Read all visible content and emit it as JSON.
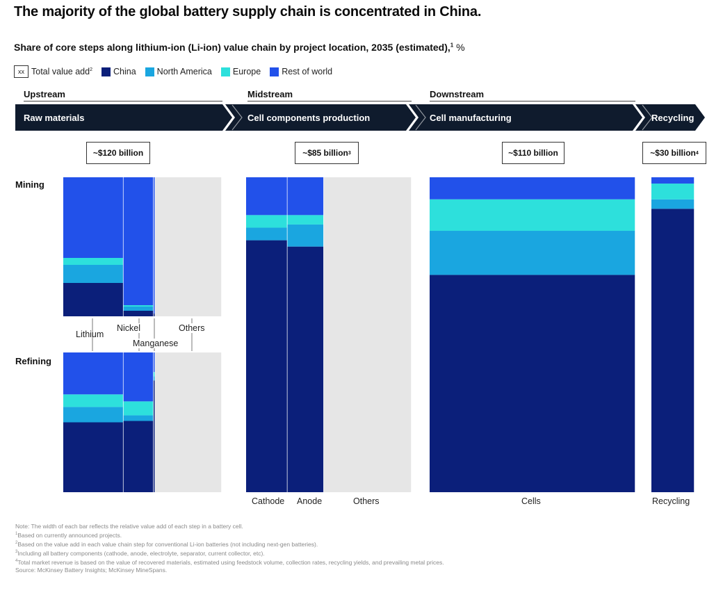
{
  "title": "The majority of the global battery supply chain is concentrated in China.",
  "subtitle": "Share of core steps along lithium-ion (Li-ion) value chain by project location, 2035 (estimated),",
  "subtitle_sup": "1",
  "subtitle_unit": "%",
  "legend": {
    "total_box": "xx",
    "total_label": "Total value add",
    "total_sup": "2",
    "items": [
      {
        "name": "China",
        "color": "#0b1f7a"
      },
      {
        "name": "North America",
        "color": "#1aa6e0"
      },
      {
        "name": "Europe",
        "color": "#2de0dc"
      },
      {
        "name": "Rest of world",
        "color": "#2251ea"
      }
    ]
  },
  "stages": {
    "upstream": "Upstream",
    "midstream": "Midstream",
    "downstream": "Downstream"
  },
  "band": {
    "raw": "Raw materials",
    "cellcomp": "Cell components production",
    "cellmfg": "Cell manufacturing",
    "recycling": "Recycling"
  },
  "totals": {
    "raw": {
      "text": "~$120 billion",
      "sup": ""
    },
    "cellcomp": {
      "text": "~$85 billion",
      "sup": "3"
    },
    "cellmfg": {
      "text": "~$110 billion",
      "sup": ""
    },
    "recycling": {
      "text": "~$30 billion",
      "sup": "4"
    }
  },
  "rows": {
    "mining": "Mining",
    "refining": "Refining"
  },
  "categories": {
    "lithium": "Lithium",
    "nickel": "Nickel",
    "manganese": "Manganese",
    "others": "Others",
    "cathode": "Cathode",
    "anode": "Anode",
    "others2": "Others",
    "cells": "Cells",
    "recycling": "Recycling"
  },
  "chart_data": {
    "type": "bar",
    "subtype": "marimekko (variable-width stacked 100% bars)",
    "unit": "%",
    "series_order": [
      "China",
      "North America",
      "Europe",
      "Rest of world"
    ],
    "colors": {
      "China": "#0b1f7a",
      "North America": "#1aa6e0",
      "Europe": "#2de0dc",
      "Rest of world": "#2251ea",
      "Other": "#e6e6e6"
    },
    "panels": [
      {
        "id": "mining",
        "name": "Mining",
        "total_value_add": "~$120 billion",
        "bars": [
          {
            "id": "lithium",
            "label": "Lithium",
            "width_share": 38,
            "values": {
              "China": 24,
              "North America": 13,
              "Europe": 5,
              "Rest of world": 58
            }
          },
          {
            "id": "nickel",
            "label": "Nickel",
            "width_share": 19,
            "values": {
              "China": 4,
              "North America": 3,
              "Europe": 1,
              "Rest of world": 92
            }
          },
          {
            "id": "manganese",
            "label": "Manganese",
            "width_share": 1,
            "values": {
              "China": 2,
              "North America": 0,
              "Europe": 0,
              "Rest of world": 98
            }
          },
          {
            "id": "others",
            "label": "Others",
            "width_share": 42,
            "values": {
              "Other": 100
            }
          }
        ]
      },
      {
        "id": "refining",
        "name": "Refining",
        "total_value_add": "~$120 billion",
        "bars": [
          {
            "id": "lithium",
            "label": "Lithium",
            "width_share": 38,
            "values": {
              "China": 50,
              "North America": 11,
              "Europe": 9,
              "Rest of world": 30
            }
          },
          {
            "id": "nickel",
            "label": "Nickel",
            "width_share": 19,
            "values": {
              "China": 51,
              "North America": 4,
              "Europe": 10,
              "Rest of world": 35
            }
          },
          {
            "id": "manganese",
            "label": "Manganese",
            "width_share": 1,
            "values": {
              "China": 80,
              "North America": 3,
              "Europe": 3,
              "Rest of world": 14
            }
          },
          {
            "id": "others",
            "label": "Others",
            "width_share": 42,
            "values": {
              "Other": 100
            }
          }
        ]
      },
      {
        "id": "cellcomp",
        "name": "Cell components production",
        "total_value_add": "~$85 billion",
        "bars": [
          {
            "id": "cathode",
            "label": "Cathode",
            "width_share": 25,
            "values": {
              "China": 80,
              "North America": 4,
              "Europe": 4,
              "Rest of world": 12
            }
          },
          {
            "id": "anode",
            "label": "Anode",
            "width_share": 22,
            "values": {
              "China": 78,
              "North America": 7,
              "Europe": 3,
              "Rest of world": 12
            }
          },
          {
            "id": "others2",
            "label": "Others",
            "width_share": 53,
            "values": {
              "Other": 100
            }
          }
        ]
      },
      {
        "id": "cellmfg",
        "name": "Cell manufacturing",
        "total_value_add": "~$110 billion",
        "bars": [
          {
            "id": "cells",
            "label": "Cells",
            "width_share": 100,
            "values": {
              "China": 69,
              "North America": 14,
              "Europe": 10,
              "Rest of world": 7
            }
          }
        ]
      },
      {
        "id": "recycling",
        "name": "Recycling",
        "total_value_add": "~$30 billion",
        "bars": [
          {
            "id": "recycling",
            "label": "Recycling",
            "width_share": 100,
            "values": {
              "China": 90,
              "North America": 3,
              "Europe": 5,
              "Rest of world": 2
            }
          }
        ]
      }
    ]
  },
  "notes": {
    "note": "Note: The width of each bar reflects the relative value add of each step in a battery cell.",
    "n1": "Based on currently announced projects.",
    "n2": "Based on the value add in each value chain step for conventional Li-ion batteries (not including next-gen batteries).",
    "n3": "Including all battery components (cathode, anode, electrolyte, separator, current collector, etc).",
    "n4": "Total market revenue is based on the value of recovered materials, estimated using feedstock volume, collection rates, recycling yields, and prevailing metal prices.",
    "source": "Source: McKinsey Battery Insights; McKinsey MineSpans."
  }
}
